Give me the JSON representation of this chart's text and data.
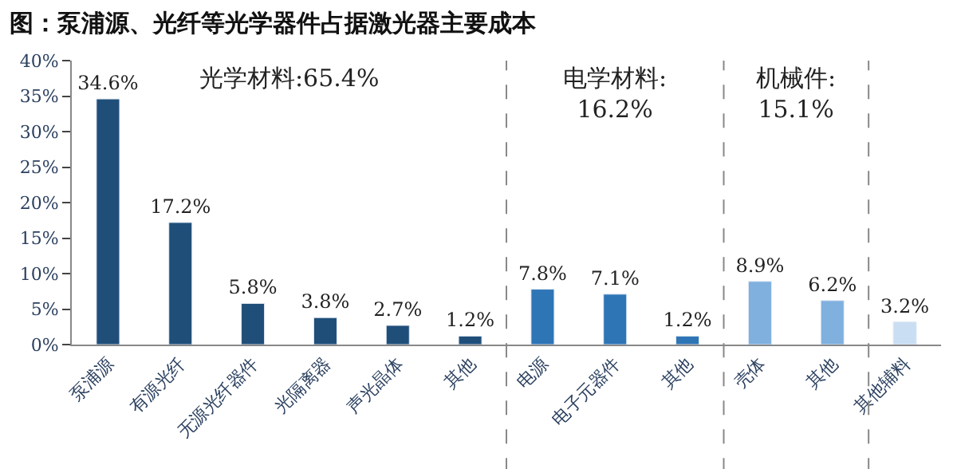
{
  "chart_data": {
    "type": "bar",
    "title": "图：泵浦源、光纤等光学器件占据激光器主要成本",
    "categories": [
      "泵浦源",
      "有源光纤",
      "无源光纤器件",
      "光隔离器",
      "声光晶体",
      "其他",
      "电源",
      "电子元器件",
      "其他",
      "壳体",
      "其他",
      "其他辅料"
    ],
    "values": [
      34.6,
      17.2,
      5.8,
      3.8,
      2.7,
      1.2,
      7.8,
      7.1,
      1.2,
      8.9,
      6.2,
      3.2
    ],
    "colors": [
      "#1f4e79",
      "#1f4e79",
      "#1f4e79",
      "#1f4e79",
      "#1f4e79",
      "#1f4e79",
      "#2e75b6",
      "#2e75b6",
      "#2e75b6",
      "#7fb0de",
      "#7fb0de",
      "#c9def2"
    ],
    "value_labels": [
      "34.6%",
      "17.2%",
      "5.8%",
      "3.8%",
      "2.7%",
      "1.2%",
      "7.8%",
      "7.1%",
      "1.2%",
      "8.9%",
      "6.2%",
      "3.2%"
    ],
    "ylim": [
      0,
      40
    ],
    "yticks": [
      {
        "value": 0,
        "label": "0%"
      },
      {
        "value": 5,
        "label": "5%"
      },
      {
        "value": 10,
        "label": "10%"
      },
      {
        "value": 15,
        "label": "15%"
      },
      {
        "value": 20,
        "label": "20%"
      },
      {
        "value": 25,
        "label": "25%"
      },
      {
        "value": 30,
        "label": "30%"
      },
      {
        "value": 35,
        "label": "35%"
      },
      {
        "value": 40,
        "label": "40%"
      }
    ],
    "annotations": [
      "光学材料:65.4%",
      "电学材料:\n16.2%",
      "机械件:\n15.1%"
    ]
  }
}
